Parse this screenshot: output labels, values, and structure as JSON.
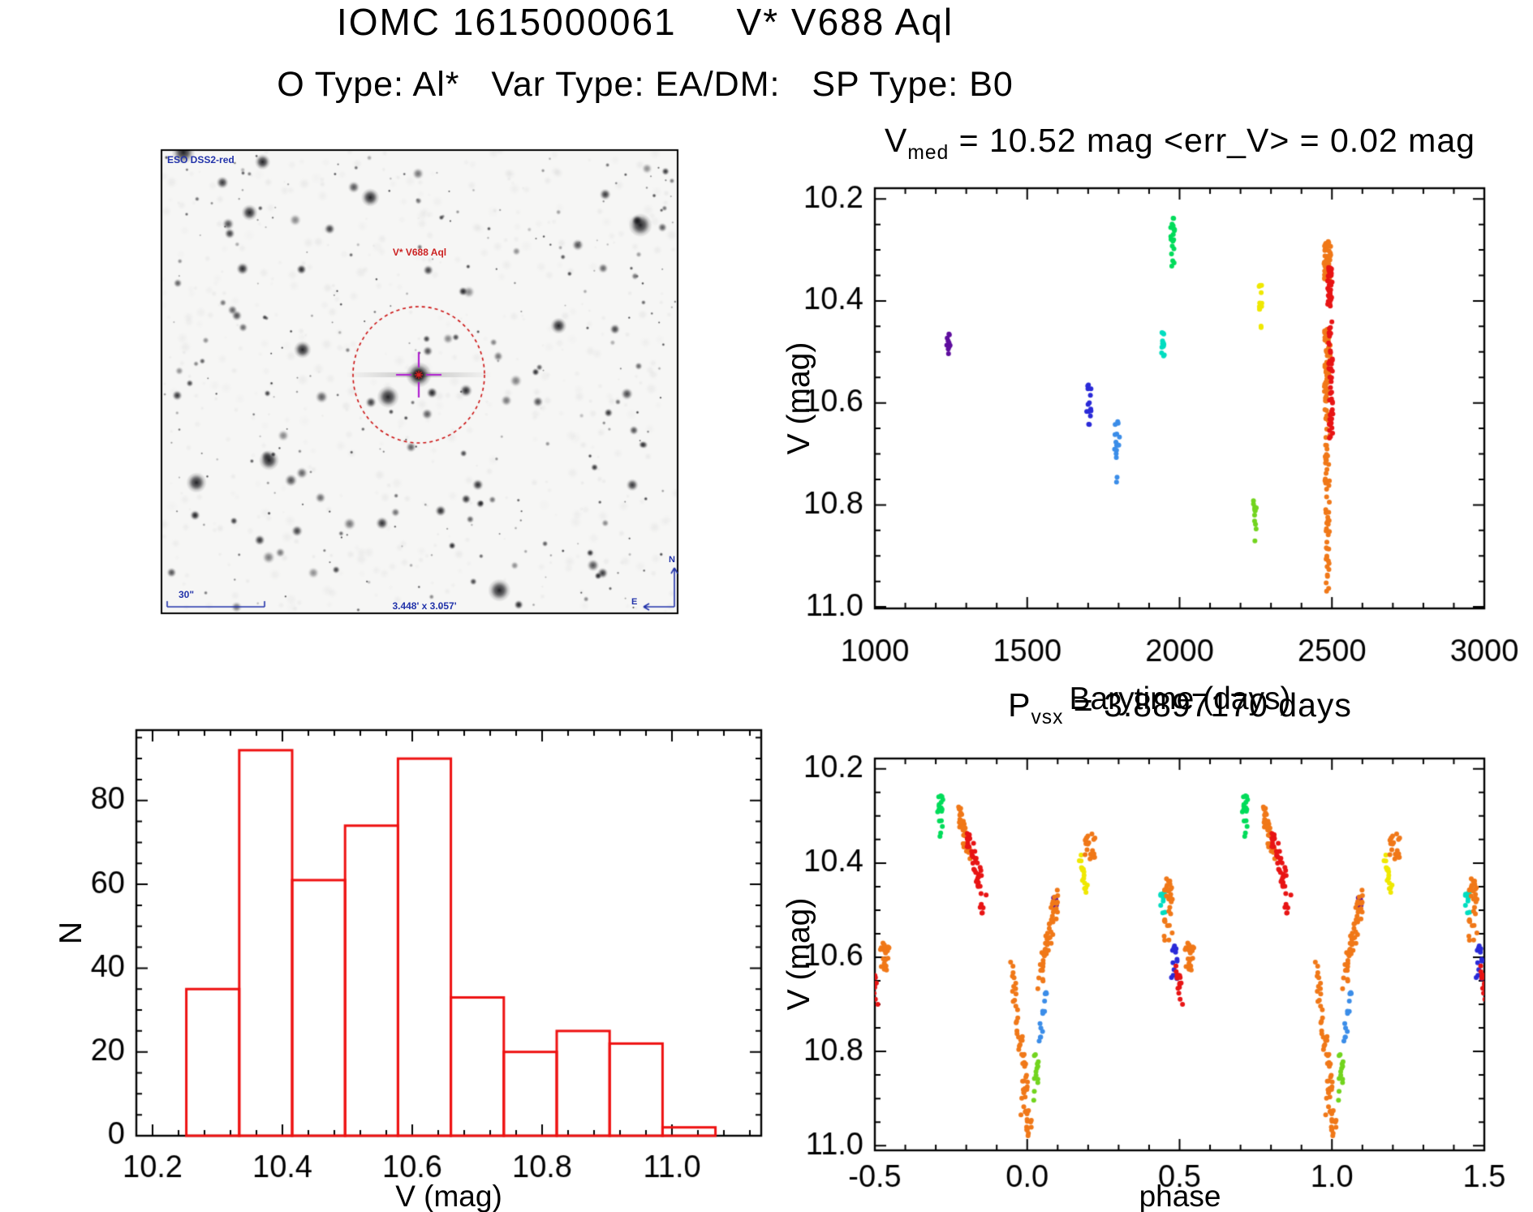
{
  "page": {
    "title": "IOMC 1615000061     V* V688 Aql",
    "subtitle": "O Type: Al*   Var Type: EA/DM:   SP Type: B0"
  },
  "colors": {
    "background": "#ffffff",
    "axis": "#000000",
    "histogram_red": "#ee1111",
    "annotation_blue": "#2233aa",
    "annotation_red": "#cc2222",
    "circle_red": "#cc1111",
    "crosshair_magenta": "#b020d0",
    "palette": {
      "purple": "#5e0d9e",
      "blue": "#2a2ad8",
      "dodger": "#3b8de8",
      "cyan": "#00ddc0",
      "green": "#00dc5a",
      "lime": "#72d41e",
      "yellow": "#efe800",
      "orange": "#f07818",
      "red": "#e81414"
    }
  },
  "starfield": {
    "survey_label": "ESO DSS2-red",
    "target_label": "V* V688 Aql",
    "scale_bar_label": "30\"",
    "fov_label": "3.448' x 3.057'",
    "compass_north": "N",
    "compass_east": "E",
    "seed": 20,
    "star_count": 340
  },
  "chart_data": [
    {
      "id": "lightcurve",
      "type": "scatter",
      "seed": 11,
      "title": {
        "pre": "V",
        "sub": "med",
        "rest": " = 10.52 mag <err_V> = 0.02 mag"
      },
      "xlabel": "Barytime (days)",
      "ylabel": "V (mag)",
      "xlim": [
        1000,
        3000
      ],
      "ylim": [
        10.179,
        11.003
      ],
      "xticks": [
        1000,
        1500,
        2000,
        2500,
        3000
      ],
      "xtick_labels": [
        "1000",
        "1500",
        "2000",
        "2500",
        "3000"
      ],
      "yticks": [
        10.2,
        10.4,
        10.6,
        10.8,
        11.0
      ],
      "ytick_labels": [
        "10.2",
        "10.4",
        "10.6",
        "10.8",
        "11.0"
      ],
      "xminor": 100,
      "yminor": 0.05,
      "clusters": [
        {
          "color": "purple",
          "x": [
            1235,
            1249
          ],
          "y": [
            10.458,
            10.512
          ],
          "n": 12,
          "mode": "box"
        },
        {
          "color": "blue",
          "x": [
            1694,
            1712
          ],
          "y": [
            10.563,
            10.627
          ],
          "n": 12,
          "mode": "box"
        },
        {
          "color": "blue",
          "x": [
            1699,
            1709
          ],
          "y": [
            10.636,
            10.648
          ],
          "n": 2,
          "mode": "box"
        },
        {
          "color": "dodger",
          "x": [
            1786,
            1803
          ],
          "y": [
            10.633,
            10.712
          ],
          "n": 14,
          "mode": "box"
        },
        {
          "color": "dodger",
          "x": [
            1789,
            1799
          ],
          "y": [
            10.737,
            10.757
          ],
          "n": 2,
          "mode": "box"
        },
        {
          "color": "cyan",
          "x": [
            1941,
            1951
          ],
          "y": [
            10.458,
            10.508
          ],
          "n": 13,
          "mode": "box"
        },
        {
          "color": "green",
          "x": [
            1970,
            1984
          ],
          "y": [
            10.238,
            10.302
          ],
          "n": 15,
          "mode": "box"
        },
        {
          "color": "green",
          "x": [
            1973,
            1982
          ],
          "y": [
            10.305,
            10.338
          ],
          "n": 4,
          "mode": "box"
        },
        {
          "color": "lime",
          "x": [
            2242,
            2252
          ],
          "y": [
            10.788,
            10.848
          ],
          "n": 11,
          "mode": "box"
        },
        {
          "color": "lime",
          "x": [
            2245,
            2250
          ],
          "y": [
            10.868,
            10.878
          ],
          "n": 1,
          "mode": "box"
        },
        {
          "color": "yellow",
          "x": [
            2261,
            2271
          ],
          "y": [
            10.363,
            10.428
          ],
          "n": 12,
          "mode": "box"
        },
        {
          "color": "yellow",
          "x": [
            2263,
            2269
          ],
          "y": [
            10.438,
            10.458
          ],
          "n": 2,
          "mode": "box"
        },
        {
          "color": "orange",
          "x": [
            2474,
            2496
          ],
          "y": [
            10.282,
            10.362
          ],
          "n": 48,
          "mode": "box"
        },
        {
          "color": "orange",
          "x": [
            2475,
            2496
          ],
          "y": [
            10.455,
            10.585
          ],
          "n": 52,
          "mode": "box"
        },
        {
          "color": "orange",
          "x": [
            2477,
            2494
          ],
          "y": [
            10.585,
            10.775
          ],
          "n": 38,
          "mode": "box"
        },
        {
          "color": "orange",
          "x": [
            2479,
            2492
          ],
          "y": [
            10.778,
            10.892
          ],
          "n": 18,
          "mode": "box"
        },
        {
          "color": "orange",
          "x": [
            2481,
            2491
          ],
          "y": [
            10.9,
            10.992
          ],
          "n": 12,
          "mode": "box"
        },
        {
          "color": "red",
          "x": [
            2486,
            2501
          ],
          "y": [
            10.328,
            10.412
          ],
          "n": 38,
          "mode": "box"
        },
        {
          "color": "red",
          "x": [
            2489,
            2502
          ],
          "y": [
            10.44,
            10.582
          ],
          "n": 30,
          "mode": "box"
        },
        {
          "color": "red",
          "x": [
            2491,
            2503
          ],
          "y": [
            10.582,
            10.672
          ],
          "n": 20,
          "mode": "box"
        }
      ]
    },
    {
      "id": "histogram",
      "type": "bar",
      "xlabel": "V (mag)",
      "ylabel": "N",
      "xlim": [
        10.175,
        11.1375
      ],
      "ylim": [
        96.8,
        0
      ],
      "xticks": [
        10.2,
        10.4,
        10.6,
        10.8,
        11.0
      ],
      "xtick_labels": [
        "10.2",
        "10.4",
        "10.6",
        "10.8",
        "11.0"
      ],
      "yticks": [
        0,
        20,
        40,
        60,
        80
      ],
      "ytick_labels": [
        "0",
        "20",
        "40",
        "60",
        "80"
      ],
      "xminor": 0.04,
      "yminor": 5,
      "bin_start": 10.252,
      "bin_width": 0.0815,
      "counts": [
        35,
        92,
        61,
        74,
        90,
        33,
        20,
        25,
        22,
        2
      ]
    },
    {
      "id": "phase",
      "type": "scatter",
      "seed": 17,
      "fold": true,
      "title": {
        "pre": "P",
        "sub": "vsx",
        "rest": " = 3.8897170 days"
      },
      "xlabel": "phase",
      "ylabel": "V (mag)",
      "xlim": [
        -0.5,
        1.5
      ],
      "ylim": [
        10.178,
        11.01
      ],
      "xticks": [
        -0.5,
        0.0,
        0.5,
        1.0,
        1.5
      ],
      "xtick_labels": [
        "-0.5",
        "0.0",
        "0.5",
        "1.0",
        "1.5"
      ],
      "yticks": [
        10.2,
        10.4,
        10.6,
        10.8,
        11.0
      ],
      "ytick_labels": [
        "10.2",
        "10.4",
        "10.6",
        "10.8",
        "11.0"
      ],
      "xminor": 0.1,
      "yminor": 0.05,
      "clusters": [
        {
          "color": "green",
          "x": [
            -0.296,
            -0.272
          ],
          "y": [
            10.248,
            10.305
          ],
          "n": 12,
          "mode": "box"
        },
        {
          "color": "green",
          "x": [
            -0.289,
            -0.277
          ],
          "y": [
            10.308,
            10.352
          ],
          "n": 5,
          "mode": "box"
        },
        {
          "color": "orange",
          "x": [
            -0.226,
            -0.186
          ],
          "y": [
            10.292,
            10.388
          ],
          "n": 40,
          "mode": "trend"
        },
        {
          "color": "red",
          "x": [
            -0.196,
            -0.15
          ],
          "y": [
            10.338,
            10.452
          ],
          "n": 40,
          "mode": "trend"
        },
        {
          "color": "red",
          "x": [
            -0.155,
            -0.134
          ],
          "y": [
            10.448,
            10.512
          ],
          "n": 8,
          "mode": "box"
        },
        {
          "color": "yellow",
          "x": [
            0.17,
            0.194
          ],
          "y": [
            10.372,
            10.458
          ],
          "n": 16,
          "mode": "trend"
        },
        {
          "color": "orange",
          "x": [
            0.19,
            0.226
          ],
          "y": [
            10.338,
            10.392
          ],
          "n": 20,
          "mode": "box"
        },
        {
          "color": "purple",
          "x": [
            0.078,
            0.097
          ],
          "y": [
            10.468,
            10.502
          ],
          "n": 7,
          "mode": "box"
        },
        {
          "color": "orange",
          "x": [
            0.035,
            0.098
          ],
          "y": [
            10.655,
            10.468
          ],
          "n": 52,
          "mode": "trend"
        },
        {
          "color": "dodger",
          "x": [
            0.04,
            0.066
          ],
          "y": [
            10.77,
            10.652
          ],
          "n": 13,
          "mode": "trend"
        },
        {
          "color": "orange",
          "x": [
            -0.05,
            -0.004
          ],
          "y": [
            10.618,
            10.878
          ],
          "n": 42,
          "mode": "trend"
        },
        {
          "color": "orange",
          "x": [
            -0.022,
            -0.006
          ],
          "y": [
            10.882,
            10.94
          ],
          "n": 6,
          "mode": "box"
        },
        {
          "color": "lime",
          "x": [
            0.02,
            0.038
          ],
          "y": [
            10.792,
            10.905
          ],
          "n": 13,
          "mode": "box"
        },
        {
          "color": "orange",
          "x": [
            -0.007,
            0.014
          ],
          "y": [
            10.92,
            10.99
          ],
          "n": 16,
          "mode": "box"
        },
        {
          "color": "cyan",
          "x": [
            0.436,
            0.452
          ],
          "y": [
            10.462,
            10.512
          ],
          "n": 11,
          "mode": "box"
        },
        {
          "color": "orange",
          "x": [
            0.449,
            0.479
          ],
          "y": [
            10.43,
            10.566
          ],
          "n": 30,
          "mode": "box"
        },
        {
          "color": "blue",
          "x": [
            0.468,
            0.494
          ],
          "y": [
            10.567,
            10.662
          ],
          "n": 12,
          "mode": "box"
        },
        {
          "color": "red",
          "x": [
            0.487,
            0.509
          ],
          "y": [
            10.618,
            10.688
          ],
          "n": 16,
          "mode": "trend"
        },
        {
          "color": "orange",
          "x": [
            0.516,
            0.548
          ],
          "y": [
            10.566,
            10.644
          ],
          "n": 24,
          "mode": "box"
        }
      ]
    }
  ]
}
